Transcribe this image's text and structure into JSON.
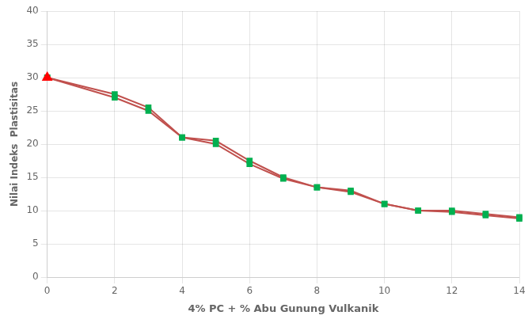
{
  "chart_data": {
    "type": "line",
    "x": [
      0,
      2,
      3,
      4,
      5,
      6,
      7,
      8,
      9,
      10,
      11,
      12,
      13,
      14
    ],
    "xlabel": "4% PC + % Abu Gunung Vulkanik",
    "ylabel": "Nilai Indeks  Plastisitas",
    "xlim": [
      0,
      14
    ],
    "ylim": [
      0,
      40
    ],
    "xticks": [
      0,
      2,
      4,
      6,
      8,
      10,
      12,
      14
    ],
    "yticks": [
      0,
      5,
      10,
      15,
      20,
      25,
      30,
      35,
      40
    ],
    "grid": true,
    "series": [
      {
        "color": "#c0504d",
        "marker": "square",
        "colors": [
          "#00b050",
          "#00b050",
          "#00b050",
          "#00b050",
          "#00b050",
          "#00b050",
          "#00b050",
          "#00b050",
          "#00b050",
          "#00b050",
          "#00b050",
          "#00b050",
          "#00b050",
          "#00b050"
        ],
        "values": [
          30,
          27.5,
          25.5,
          21.0,
          20.5,
          17.5,
          15.0,
          13.5,
          13.0,
          11.0,
          10.0,
          10.0,
          9.5,
          9.0
        ]
      },
      {
        "color": "#c0504d",
        "marker": "square",
        "colors": [
          "#00b050",
          "#00b050",
          "#00b050",
          "#00b050",
          "#00b050",
          "#00b050",
          "#00b050",
          "#00b050",
          "#00b050",
          "#00b050",
          "#00b050",
          "#00b050",
          "#00b050",
          "#00b050"
        ],
        "values": [
          30,
          27.0,
          25.0,
          21.0,
          20.0,
          17.0,
          14.8,
          13.5,
          12.8,
          11.0,
          10.0,
          9.8,
          9.3,
          8.8
        ]
      },
      {
        "type": "scatter",
        "marker": "triangle",
        "color": "#ff0000",
        "x": [
          0
        ],
        "values": [
          30
        ]
      }
    ]
  }
}
